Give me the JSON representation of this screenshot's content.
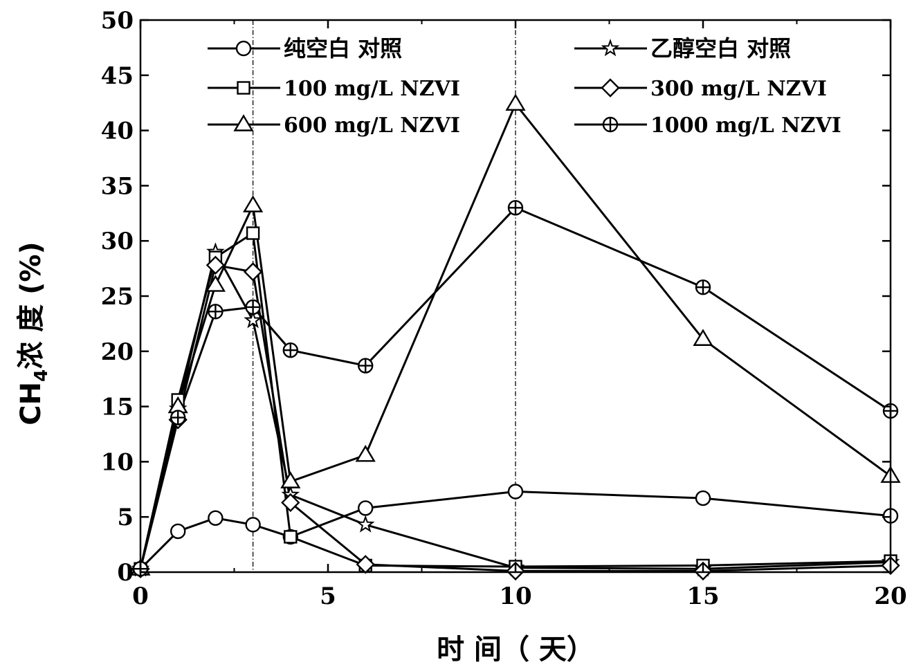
{
  "chart_data": {
    "type": "line",
    "title": "",
    "xlabel": "时 间（ 天）",
    "ylabel": "CH4浓 度 (%)",
    "ylabel_parts": {
      "main": "CH",
      "sub": "4",
      "rest": "浓 度 (%)"
    },
    "xlim": [
      0,
      20
    ],
    "ylim": [
      0,
      50
    ],
    "x_ticks": [
      "0",
      "5",
      "10",
      "15",
      "20"
    ],
    "y_ticks": [
      "0",
      "5",
      "10",
      "15",
      "20",
      "25",
      "30",
      "35",
      "40",
      "45",
      "50"
    ],
    "x_tick_values": [
      0,
      5,
      10,
      15,
      20
    ],
    "y_tick_values": [
      0,
      5,
      10,
      15,
      20,
      25,
      30,
      35,
      40,
      45,
      50
    ],
    "reference_lines_x": [
      3,
      10
    ],
    "grid": false,
    "legend_position": "top",
    "x": [
      0,
      1,
      2,
      3,
      4,
      6,
      10,
      15,
      20
    ],
    "series": [
      {
        "name": "纯空白   对照",
        "marker": "circle",
        "values": [
          0.3,
          3.7,
          4.9,
          4.3,
          3.2,
          5.8,
          7.3,
          6.7,
          5.1
        ]
      },
      {
        "name": "乙醇空白   对照",
        "marker": "star",
        "values": [
          0.3,
          14.8,
          29.0,
          22.8,
          7.0,
          4.3,
          0.4,
          0.3,
          0.9
        ]
      },
      {
        "name": "100 mg/L NZVI",
        "marker": "square",
        "values": [
          0.3,
          15.6,
          28.5,
          30.7,
          3.2,
          0.6,
          0.5,
          0.6,
          1.0
        ]
      },
      {
        "name": "300 mg/L NZVI",
        "marker": "diamond",
        "values": [
          0.3,
          13.8,
          27.8,
          27.2,
          6.3,
          0.7,
          0.1,
          0.1,
          0.6
        ]
      },
      {
        "name": "600 mg/L NZVI",
        "marker": "triangle",
        "values": [
          0.3,
          15.0,
          26.0,
          33.2,
          8.2,
          10.6,
          42.4,
          21.1,
          8.7
        ]
      },
      {
        "name": "1000 mg/L NZVI",
        "marker": "circle-plus",
        "values": [
          0.3,
          14.0,
          23.6,
          24.0,
          20.1,
          18.7,
          33.0,
          25.8,
          14.6
        ]
      }
    ]
  }
}
